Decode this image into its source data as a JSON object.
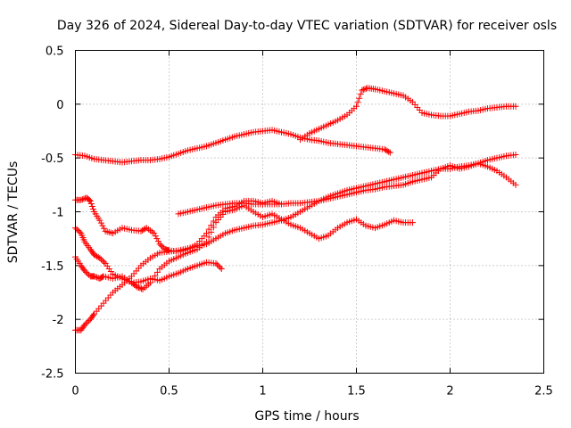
{
  "chart_data": {
    "type": "scatter",
    "title": "Day 326 of 2024, Sidereal Day-to-day VTEC variation (SDTVAR) for receiver osls",
    "xlabel": "GPS time / hours",
    "ylabel": "SDTVAR / TECUs",
    "xlim": [
      0,
      2.5
    ],
    "ylim": [
      -2.5,
      0.5
    ],
    "x_ticks": [
      "0",
      "0.5",
      "1",
      "1.5",
      "2",
      "2.5"
    ],
    "y_ticks": [
      "0.5",
      "0",
      "-0.5",
      "-1",
      "-1.5",
      "-2",
      "-2.5"
    ],
    "grid": true,
    "marker": "+",
    "series_color": "#ff0000",
    "series": [
      {
        "x": [
          0.0,
          0.05,
          0.1,
          0.15,
          0.2,
          0.25,
          0.3,
          0.35,
          0.4,
          0.45,
          0.5,
          0.55,
          0.6,
          0.65,
          0.7,
          0.75,
          0.8,
          0.85,
          0.9,
          0.95,
          1.0,
          1.05,
          1.1,
          1.15,
          1.2,
          1.25,
          1.3,
          1.35,
          1.4,
          1.45,
          1.5,
          1.55,
          1.6,
          1.65,
          1.68
        ],
        "y": [
          -0.47,
          -0.48,
          -0.51,
          -0.52,
          -0.53,
          -0.54,
          -0.53,
          -0.52,
          -0.52,
          -0.51,
          -0.49,
          -0.46,
          -0.43,
          -0.41,
          -0.39,
          -0.36,
          -0.33,
          -0.3,
          -0.28,
          -0.26,
          -0.25,
          -0.24,
          -0.26,
          -0.28,
          -0.31,
          -0.33,
          -0.34,
          -0.36,
          -0.37,
          -0.38,
          -0.39,
          -0.4,
          -0.41,
          -0.42,
          -0.45
        ]
      },
      {
        "x": [
          1.2,
          1.25,
          1.3,
          1.35,
          1.4,
          1.45,
          1.5,
          1.53,
          1.56,
          1.6,
          1.65,
          1.7,
          1.75,
          1.8,
          1.85,
          1.9,
          1.95,
          2.0,
          2.05,
          2.1,
          2.15,
          2.2,
          2.25,
          2.3,
          2.35
        ],
        "y": [
          -0.33,
          -0.27,
          -0.23,
          -0.19,
          -0.15,
          -0.1,
          -0.02,
          0.13,
          0.15,
          0.14,
          0.12,
          0.1,
          0.08,
          0.02,
          -0.08,
          -0.1,
          -0.11,
          -0.11,
          -0.09,
          -0.07,
          -0.06,
          -0.04,
          -0.03,
          -0.02,
          -0.02
        ]
      },
      {
        "x": [
          0.0,
          0.03,
          0.06,
          0.08,
          0.1,
          0.13,
          0.16,
          0.2,
          0.25,
          0.3,
          0.35,
          0.38,
          0.42,
          0.45,
          0.48,
          0.5,
          0.55,
          0.6,
          0.65,
          0.7,
          0.75,
          0.8,
          0.85,
          0.9,
          0.95,
          1.0,
          1.05,
          1.1
        ],
        "y": [
          -0.89,
          -0.89,
          -0.87,
          -0.9,
          -1.0,
          -1.08,
          -1.18,
          -1.2,
          -1.15,
          -1.17,
          -1.18,
          -1.15,
          -1.2,
          -1.3,
          -1.35,
          -1.36,
          -1.37,
          -1.35,
          -1.3,
          -1.2,
          -1.05,
          -0.97,
          -0.95,
          -0.9,
          -0.9,
          -0.92,
          -0.9,
          -0.93
        ]
      },
      {
        "x": [
          0.0,
          0.03,
          0.05,
          0.08,
          0.1,
          0.13,
          0.16,
          0.2,
          0.25,
          0.3,
          0.33,
          0.36,
          0.4,
          0.45,
          0.5,
          0.55,
          0.6,
          0.65,
          0.7,
          0.75,
          0.8,
          0.85,
          0.9,
          0.95,
          1.0,
          1.05,
          1.1,
          1.15,
          1.2,
          1.25,
          1.3,
          1.35,
          1.4,
          1.45,
          1.5,
          1.55,
          1.6,
          1.65,
          1.7,
          1.75,
          1.8
        ],
        "y": [
          -1.15,
          -1.2,
          -1.28,
          -1.35,
          -1.4,
          -1.43,
          -1.48,
          -1.58,
          -1.62,
          -1.66,
          -1.7,
          -1.72,
          -1.66,
          -1.53,
          -1.46,
          -1.42,
          -1.38,
          -1.35,
          -1.28,
          -1.1,
          -1.0,
          -0.98,
          -0.94,
          -1.0,
          -1.05,
          -1.02,
          -1.07,
          -1.12,
          -1.15,
          -1.2,
          -1.25,
          -1.22,
          -1.15,
          -1.1,
          -1.07,
          -1.13,
          -1.15,
          -1.12,
          -1.08,
          -1.1,
          -1.1
        ]
      },
      {
        "x": [
          0.0,
          0.03,
          0.05,
          0.08,
          0.1,
          0.13,
          0.15,
          0.2,
          0.25,
          0.3,
          0.35,
          0.4,
          0.45,
          0.5,
          0.55,
          0.6,
          0.65,
          0.7,
          0.75,
          0.78
        ],
        "y": [
          -1.42,
          -1.5,
          -1.55,
          -1.6,
          -1.6,
          -1.62,
          -1.6,
          -1.62,
          -1.6,
          -1.66,
          -1.65,
          -1.62,
          -1.64,
          -1.6,
          -1.57,
          -1.53,
          -1.5,
          -1.47,
          -1.48,
          -1.53
        ]
      },
      {
        "x": [
          0.0,
          0.03,
          0.05,
          0.08,
          0.1,
          0.15,
          0.2,
          0.25,
          0.3,
          0.35,
          0.4,
          0.45,
          0.5,
          0.55,
          0.6,
          0.65,
          0.7,
          0.75,
          0.8,
          0.85,
          0.9,
          0.95,
          1.0,
          1.05,
          1.1,
          1.15,
          1.2,
          1.25,
          1.3,
          1.35,
          1.4,
          1.45,
          1.5,
          1.55,
          1.6,
          1.65,
          1.7,
          1.75,
          1.8,
          1.85,
          1.9,
          1.95,
          2.0,
          2.05,
          2.1,
          2.15,
          2.2,
          2.25,
          2.3,
          2.35
        ],
        "y": [
          -2.1,
          -2.1,
          -2.05,
          -2.0,
          -1.95,
          -1.85,
          -1.75,
          -1.68,
          -1.6,
          -1.5,
          -1.43,
          -1.38,
          -1.37,
          -1.36,
          -1.34,
          -1.32,
          -1.3,
          -1.25,
          -1.2,
          -1.17,
          -1.15,
          -1.13,
          -1.12,
          -1.1,
          -1.08,
          -1.05,
          -1.0,
          -0.95,
          -0.9,
          -0.86,
          -0.83,
          -0.8,
          -0.78,
          -0.76,
          -0.74,
          -0.72,
          -0.7,
          -0.68,
          -0.66,
          -0.64,
          -0.62,
          -0.6,
          -0.6,
          -0.58,
          -0.57,
          -0.55,
          -0.52,
          -0.5,
          -0.48,
          -0.47
        ]
      },
      {
        "x": [
          0.55,
          0.6,
          0.65,
          0.7,
          0.75,
          0.8,
          0.85,
          0.9,
          0.95,
          1.0,
          1.05,
          1.1,
          1.15,
          1.2,
          1.25,
          1.3,
          1.35,
          1.4,
          1.45,
          1.5,
          1.55,
          1.6,
          1.65,
          1.7,
          1.75,
          1.8,
          1.85,
          1.9,
          1.95,
          2.0,
          2.05,
          2.1,
          2.15,
          2.2,
          2.25,
          2.3,
          2.35
        ],
        "y": [
          -1.02,
          -1.0,
          -0.98,
          -0.96,
          -0.94,
          -0.93,
          -0.92,
          -0.92,
          -0.93,
          -0.93,
          -0.93,
          -0.93,
          -0.92,
          -0.92,
          -0.91,
          -0.9,
          -0.88,
          -0.86,
          -0.84,
          -0.82,
          -0.8,
          -0.79,
          -0.77,
          -0.76,
          -0.75,
          -0.72,
          -0.7,
          -0.68,
          -0.6,
          -0.57,
          -0.6,
          -0.58,
          -0.55,
          -0.58,
          -0.62,
          -0.68,
          -0.75
        ]
      }
    ]
  }
}
